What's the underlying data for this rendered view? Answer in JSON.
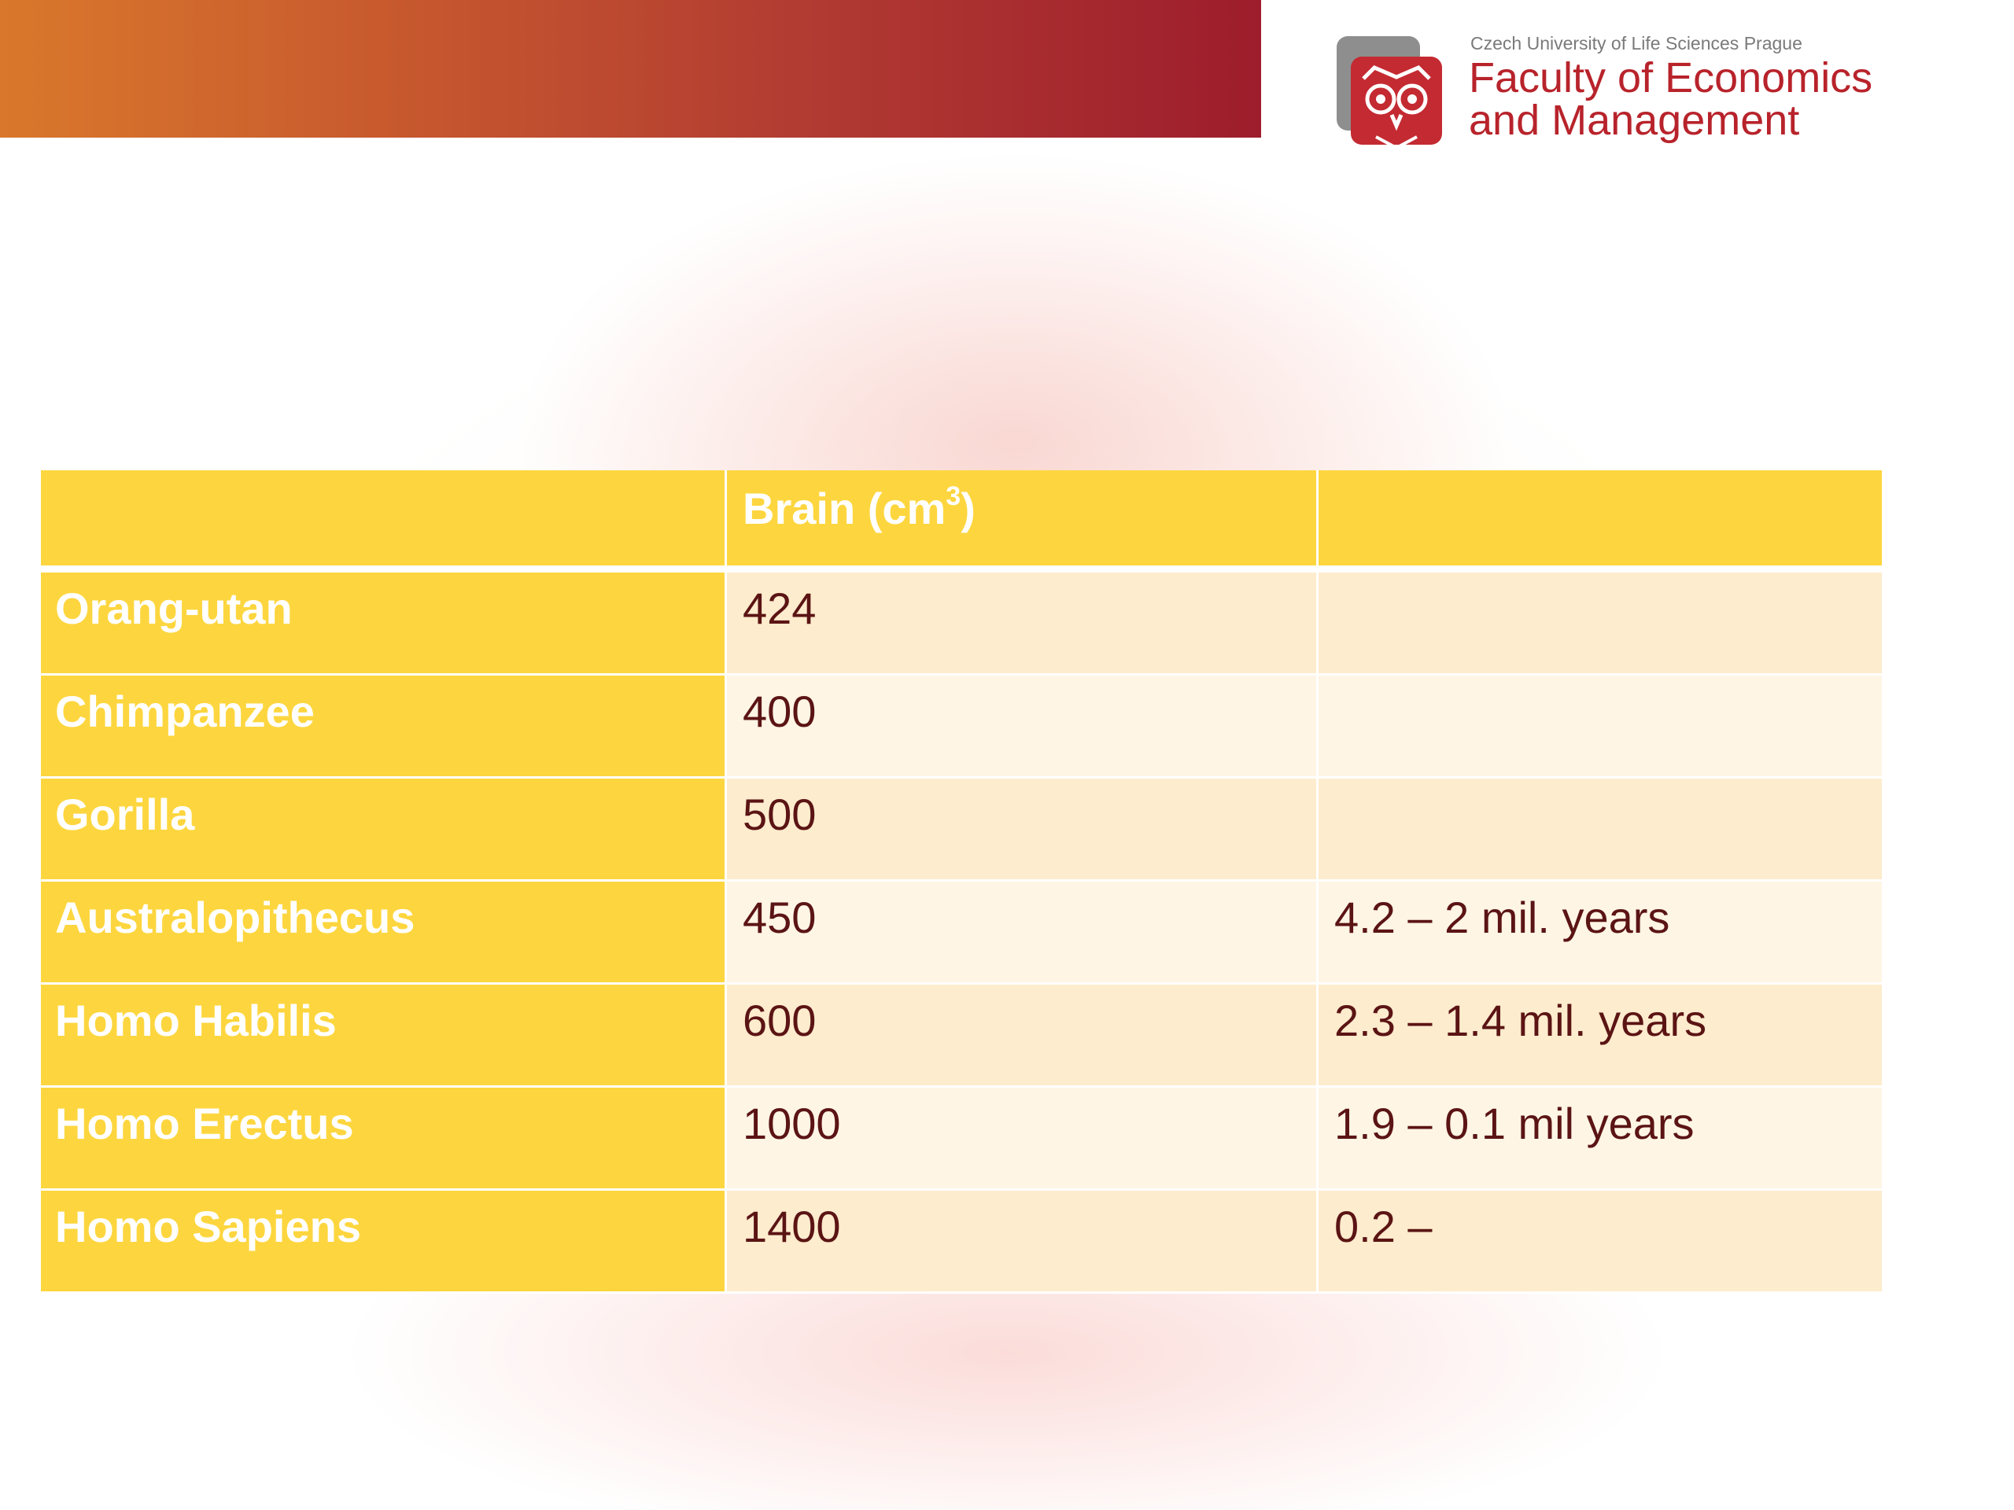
{
  "header": {
    "university": "Czech University of Life Sciences Prague",
    "faculty_line1": "Faculty of Economics",
    "faculty_line2": "and Management"
  },
  "colors": {
    "band_start": "#d9782c",
    "band_end": "#9d1d2c",
    "table_yellow": "#fdd63f",
    "row_light_a": "#fdeccd",
    "row_light_b": "#fef5e5",
    "value_text": "#5b1414",
    "logo_red": "#b8232b"
  },
  "table": {
    "columns": {
      "species": "",
      "brain_label": "Brain (cm",
      "brain_unit_sup": "3",
      "brain_close": ")",
      "period": ""
    },
    "rows": [
      {
        "species": "Orang-utan",
        "brain": "424",
        "period": ""
      },
      {
        "species": "Chimpanzee",
        "brain": "400",
        "period": ""
      },
      {
        "species": "Gorilla",
        "brain": "500",
        "period": ""
      },
      {
        "species": "Australopithecus",
        "brain": "450",
        "period": "4.2 – 2 mil. years"
      },
      {
        "species": "Homo Habilis",
        "brain": "600",
        "period": "2.3 – 1.4 mil. years"
      },
      {
        "species": "Homo Erectus",
        "brain": "1000",
        "period": "1.9 – 0.1 mil years"
      },
      {
        "species": "Homo Sapiens",
        "brain": "1400",
        "period": "0.2 –"
      }
    ]
  }
}
